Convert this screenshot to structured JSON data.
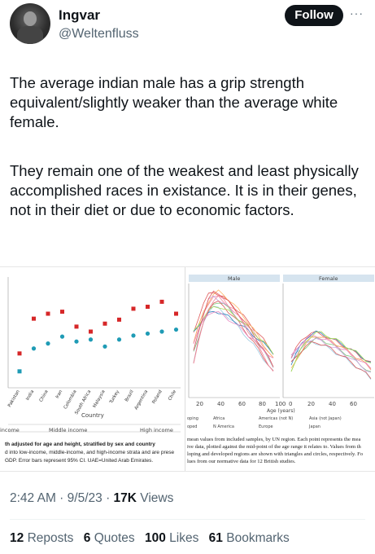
{
  "author": {
    "name": "Ingvar",
    "handle": "@Weltenfluss"
  },
  "follow_label": "Follow",
  "more_label": "···",
  "tweet": {
    "para1": "The average indian male has a grip strength equivalent/slightly weaker than the average white female.",
    "para2": "They remain one of the weakest and least physically accomplished races in existance. It is in their genes, not in their diet or due to economic factors."
  },
  "figure_left": {
    "countries": [
      "Pakistan",
      "India",
      "China",
      "Iran",
      "Colombia",
      "South Africa",
      "Malaysia",
      "Turkey",
      "Brazil",
      "Argentina",
      "Poland",
      "Chile"
    ],
    "xlabel": "Country",
    "income_labels": [
      "income",
      "Middle income",
      "High income"
    ],
    "caption1": "th adjusted for age and height, stratified by sex and country",
    "caption2": "d into low-income, middle-income, and high-income strata and are prese",
    "caption3": "GDP. Error bars represent 95% CI. UAE=United Arab Emirates.",
    "colors": {
      "male": "#d62728",
      "female": "#1f9bb5"
    },
    "male_marks": [
      0.28,
      0.63,
      0.68,
      0.7,
      0.55,
      0.5,
      0.58,
      0.62,
      0.73,
      0.75,
      0.8,
      0.68
    ],
    "female_marks": [
      0.1,
      0.33,
      0.38,
      0.45,
      0.4,
      0.42,
      0.35,
      0.42,
      0.46,
      0.48,
      0.5,
      0.52
    ]
  },
  "figure_right": {
    "panel_titles": [
      "Male",
      "Female"
    ],
    "ticks_male": [
      "20",
      "40",
      "60",
      "80",
      "100"
    ],
    "ticks_female": [
      "0",
      "20",
      "40",
      "60"
    ],
    "xlabel": "Age (years)",
    "legend": [
      "Africa",
      "Americas (not N)",
      "Asia (not Japan)",
      "N America",
      "Europe",
      "Japan"
    ],
    "legend_left": [
      "oping",
      "oped"
    ],
    "caption1": "mean values from included samples, by UN region. Each point represents the mea",
    "caption2": "ive data, plotted against the mid-point of the age range it relates to. Values from th",
    "caption3": "loping and developed regions are shown with triangles and circles, respectively. Fo",
    "caption4": "lues from our normative data for 12 British studies."
  },
  "meta": {
    "time": "2:42 AM",
    "date": "9/5/23",
    "views_count": "17K",
    "views_label": "Views"
  },
  "stats": [
    {
      "count": "12",
      "label": "Reposts"
    },
    {
      "count": "6",
      "label": "Quotes"
    },
    {
      "count": "100",
      "label": "Likes"
    },
    {
      "count": "61",
      "label": "Bookmarks"
    }
  ]
}
